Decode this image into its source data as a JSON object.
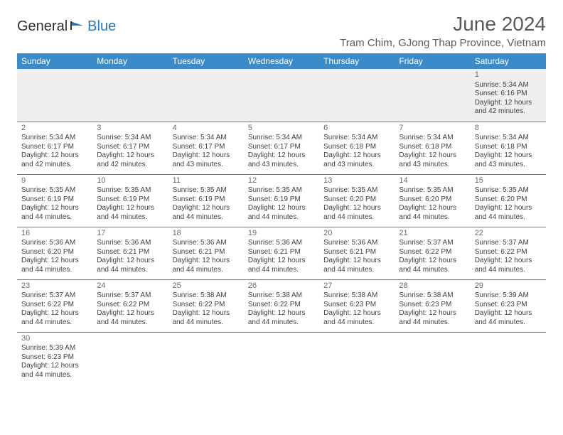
{
  "logo": {
    "text1": "General",
    "text2": "Blue"
  },
  "title": "June 2024",
  "location": "Tram Chim, GJong Thap Province, Vietnam",
  "colors": {
    "header_bg": "#3b8bc9",
    "header_text": "#ffffff",
    "cell_border": "#3b8bc9",
    "empty_bg": "#efefef",
    "body_text": "#414141",
    "title_text": "#5a5a5a",
    "logo_blue": "#2779bd"
  },
  "day_headers": [
    "Sunday",
    "Monday",
    "Tuesday",
    "Wednesday",
    "Thursday",
    "Friday",
    "Saturday"
  ],
  "weeks": [
    [
      {
        "blank": true
      },
      {
        "blank": true
      },
      {
        "blank": true
      },
      {
        "blank": true
      },
      {
        "blank": true
      },
      {
        "blank": true
      },
      {
        "day": "1",
        "sunrise": "Sunrise: 5:34 AM",
        "sunset": "Sunset: 6:16 PM",
        "daylight": "Daylight: 12 hours and 42 minutes."
      }
    ],
    [
      {
        "day": "2",
        "sunrise": "Sunrise: 5:34 AM",
        "sunset": "Sunset: 6:17 PM",
        "daylight": "Daylight: 12 hours and 42 minutes."
      },
      {
        "day": "3",
        "sunrise": "Sunrise: 5:34 AM",
        "sunset": "Sunset: 6:17 PM",
        "daylight": "Daylight: 12 hours and 42 minutes."
      },
      {
        "day": "4",
        "sunrise": "Sunrise: 5:34 AM",
        "sunset": "Sunset: 6:17 PM",
        "daylight": "Daylight: 12 hours and 43 minutes."
      },
      {
        "day": "5",
        "sunrise": "Sunrise: 5:34 AM",
        "sunset": "Sunset: 6:17 PM",
        "daylight": "Daylight: 12 hours and 43 minutes."
      },
      {
        "day": "6",
        "sunrise": "Sunrise: 5:34 AM",
        "sunset": "Sunset: 6:18 PM",
        "daylight": "Daylight: 12 hours and 43 minutes."
      },
      {
        "day": "7",
        "sunrise": "Sunrise: 5:34 AM",
        "sunset": "Sunset: 6:18 PM",
        "daylight": "Daylight: 12 hours and 43 minutes."
      },
      {
        "day": "8",
        "sunrise": "Sunrise: 5:34 AM",
        "sunset": "Sunset: 6:18 PM",
        "daylight": "Daylight: 12 hours and 43 minutes."
      }
    ],
    [
      {
        "day": "9",
        "sunrise": "Sunrise: 5:35 AM",
        "sunset": "Sunset: 6:19 PM",
        "daylight": "Daylight: 12 hours and 44 minutes."
      },
      {
        "day": "10",
        "sunrise": "Sunrise: 5:35 AM",
        "sunset": "Sunset: 6:19 PM",
        "daylight": "Daylight: 12 hours and 44 minutes."
      },
      {
        "day": "11",
        "sunrise": "Sunrise: 5:35 AM",
        "sunset": "Sunset: 6:19 PM",
        "daylight": "Daylight: 12 hours and 44 minutes."
      },
      {
        "day": "12",
        "sunrise": "Sunrise: 5:35 AM",
        "sunset": "Sunset: 6:19 PM",
        "daylight": "Daylight: 12 hours and 44 minutes."
      },
      {
        "day": "13",
        "sunrise": "Sunrise: 5:35 AM",
        "sunset": "Sunset: 6:20 PM",
        "daylight": "Daylight: 12 hours and 44 minutes."
      },
      {
        "day": "14",
        "sunrise": "Sunrise: 5:35 AM",
        "sunset": "Sunset: 6:20 PM",
        "daylight": "Daylight: 12 hours and 44 minutes."
      },
      {
        "day": "15",
        "sunrise": "Sunrise: 5:35 AM",
        "sunset": "Sunset: 6:20 PM",
        "daylight": "Daylight: 12 hours and 44 minutes."
      }
    ],
    [
      {
        "day": "16",
        "sunrise": "Sunrise: 5:36 AM",
        "sunset": "Sunset: 6:20 PM",
        "daylight": "Daylight: 12 hours and 44 minutes."
      },
      {
        "day": "17",
        "sunrise": "Sunrise: 5:36 AM",
        "sunset": "Sunset: 6:21 PM",
        "daylight": "Daylight: 12 hours and 44 minutes."
      },
      {
        "day": "18",
        "sunrise": "Sunrise: 5:36 AM",
        "sunset": "Sunset: 6:21 PM",
        "daylight": "Daylight: 12 hours and 44 minutes."
      },
      {
        "day": "19",
        "sunrise": "Sunrise: 5:36 AM",
        "sunset": "Sunset: 6:21 PM",
        "daylight": "Daylight: 12 hours and 44 minutes."
      },
      {
        "day": "20",
        "sunrise": "Sunrise: 5:36 AM",
        "sunset": "Sunset: 6:21 PM",
        "daylight": "Daylight: 12 hours and 44 minutes."
      },
      {
        "day": "21",
        "sunrise": "Sunrise: 5:37 AM",
        "sunset": "Sunset: 6:22 PM",
        "daylight": "Daylight: 12 hours and 44 minutes."
      },
      {
        "day": "22",
        "sunrise": "Sunrise: 5:37 AM",
        "sunset": "Sunset: 6:22 PM",
        "daylight": "Daylight: 12 hours and 44 minutes."
      }
    ],
    [
      {
        "day": "23",
        "sunrise": "Sunrise: 5:37 AM",
        "sunset": "Sunset: 6:22 PM",
        "daylight": "Daylight: 12 hours and 44 minutes."
      },
      {
        "day": "24",
        "sunrise": "Sunrise: 5:37 AM",
        "sunset": "Sunset: 6:22 PM",
        "daylight": "Daylight: 12 hours and 44 minutes."
      },
      {
        "day": "25",
        "sunrise": "Sunrise: 5:38 AM",
        "sunset": "Sunset: 6:22 PM",
        "daylight": "Daylight: 12 hours and 44 minutes."
      },
      {
        "day": "26",
        "sunrise": "Sunrise: 5:38 AM",
        "sunset": "Sunset: 6:22 PM",
        "daylight": "Daylight: 12 hours and 44 minutes."
      },
      {
        "day": "27",
        "sunrise": "Sunrise: 5:38 AM",
        "sunset": "Sunset: 6:23 PM",
        "daylight": "Daylight: 12 hours and 44 minutes."
      },
      {
        "day": "28",
        "sunrise": "Sunrise: 5:38 AM",
        "sunset": "Sunset: 6:23 PM",
        "daylight": "Daylight: 12 hours and 44 minutes."
      },
      {
        "day": "29",
        "sunrise": "Sunrise: 5:39 AM",
        "sunset": "Sunset: 6:23 PM",
        "daylight": "Daylight: 12 hours and 44 minutes."
      }
    ],
    [
      {
        "day": "30",
        "sunrise": "Sunrise: 5:39 AM",
        "sunset": "Sunset: 6:23 PM",
        "daylight": "Daylight: 12 hours and 44 minutes."
      },
      {
        "blank": true
      },
      {
        "blank": true
      },
      {
        "blank": true
      },
      {
        "blank": true
      },
      {
        "blank": true
      },
      {
        "blank": true
      }
    ]
  ]
}
